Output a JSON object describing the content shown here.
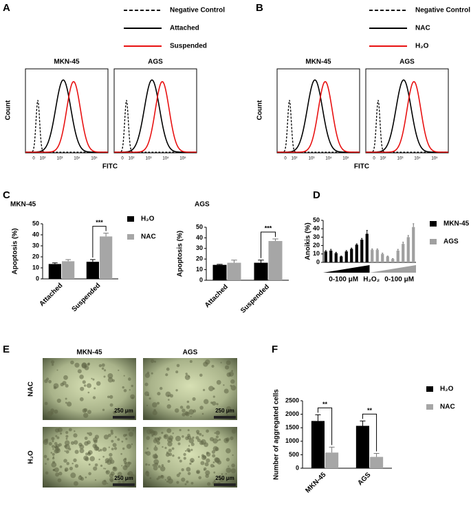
{
  "panel_labels": [
    "A",
    "B",
    "C",
    "D",
    "E",
    "F"
  ],
  "flow_panels": [
    {
      "legend": [
        {
          "label": "Negative Control",
          "color": "#000000",
          "style": "dashed"
        },
        {
          "label": "Attached",
          "color": "#000000",
          "style": "solid"
        },
        {
          "label": "Suspended",
          "color": "#e81010",
          "style": "solid"
        }
      ],
      "plots": [
        "MKN-45",
        "AGS"
      ],
      "y_label": "Count",
      "x_label": "FITC",
      "tick_labels": [
        "0",
        "10²",
        "10³",
        "10⁴",
        "10⁵"
      ]
    },
    {
      "legend": [
        {
          "label": "Negative Control",
          "color": "#000000",
          "style": "dashed"
        },
        {
          "label": "NAC",
          "color": "#000000",
          "style": "solid"
        },
        {
          "label": "H₂O",
          "color": "#e81010",
          "style": "solid"
        }
      ],
      "plots": [
        "MKN-45",
        "AGS"
      ],
      "y_label": "Count",
      "x_label": "FITC",
      "tick_labels": [
        "0",
        "10²",
        "10³",
        "10⁴",
        "10⁵"
      ]
    }
  ],
  "chart_data": [
    {
      "type": "bar",
      "title": "MKN-45",
      "y_label": "Apoptosis (%)",
      "categories": [
        "Attached",
        "Suspended"
      ],
      "series": [
        {
          "name": "H₂O",
          "color": "#000000",
          "values": [
            13.5,
            15.5
          ],
          "errors": [
            1,
            2
          ]
        },
        {
          "name": "NAC",
          "color": "#a6a6a6",
          "values": [
            16,
            38.5
          ],
          "errors": [
            1.5,
            3
          ]
        }
      ],
      "annotations": [
        null,
        "***"
      ],
      "ylim": [
        0,
        50
      ],
      "yticks": [
        0,
        10,
        20,
        30,
        40,
        50
      ],
      "legend": "right"
    },
    {
      "type": "bar",
      "title": "AGS",
      "y_label": "Apoptosis (%)",
      "categories": [
        "Attached",
        "Suspended"
      ],
      "series": [
        {
          "color": "#000000",
          "values": [
            14.5,
            16.5
          ],
          "errors": [
            0.5,
            2.5
          ]
        },
        {
          "color": "#a6a6a6",
          "values": [
            16.5,
            37
          ],
          "errors": [
            2.5,
            2
          ]
        }
      ],
      "annotations": [
        null,
        "***"
      ],
      "ylim": [
        0,
        50
      ],
      "yticks": [
        0,
        10,
        20,
        30,
        40,
        50
      ]
    },
    {
      "type": "bar",
      "y_label": "Anoikis (%)",
      "categories": [
        null,
        null,
        null,
        null,
        null,
        null,
        null,
        null,
        null,
        null,
        null,
        null,
        null,
        null,
        null,
        null,
        null,
        null
      ],
      "series": [
        {
          "name": "MKN-45",
          "color": "#000000",
          "values": [
            13,
            14,
            11,
            7,
            13,
            16,
            21,
            27,
            34,
            null,
            null,
            null,
            null,
            null,
            null,
            null,
            null,
            null
          ],
          "errors": [
            1,
            1.5,
            1,
            0.5,
            1,
            1,
            1,
            1.5,
            4,
            null,
            null,
            null,
            null,
            null,
            null,
            null,
            null,
            null
          ]
        },
        {
          "name": "AGS",
          "color": "#a0a0a0",
          "values": [
            null,
            null,
            null,
            null,
            null,
            null,
            null,
            null,
            null,
            15,
            15,
            10,
            7,
            4,
            14,
            22,
            30,
            42
          ],
          "errors": [
            null,
            null,
            null,
            null,
            null,
            null,
            null,
            null,
            null,
            1,
            1,
            1,
            0.5,
            0.5,
            1.5,
            2,
            2,
            4
          ]
        }
      ],
      "x_labels": [
        "0-100 μM",
        "H₂O₂",
        "0-100 μM"
      ],
      "ylim": [
        0,
        50
      ],
      "yticks": [
        0,
        10,
        20,
        30,
        40,
        50
      ],
      "legend": "right"
    },
    {
      "type": "bar",
      "y_label": "Number of aggregated cells",
      "categories": [
        "MKN-45",
        "AGS"
      ],
      "series": [
        {
          "name": "H₂O",
          "color": "#000000",
          "values": [
            1750,
            1570
          ],
          "errors": [
            230,
            180
          ]
        },
        {
          "name": "NAC",
          "color": "#a6a6a6",
          "values": [
            580,
            420
          ],
          "errors": [
            200,
            130
          ]
        }
      ],
      "annotations": [
        "**",
        "**"
      ],
      "ylim": [
        0,
        2500
      ],
      "yticks": [
        0,
        500,
        1000,
        1500,
        2000,
        2500
      ],
      "legend": "right"
    }
  ],
  "micrographs": {
    "columns": [
      "MKN-45",
      "AGS"
    ],
    "rows": [
      "NAC",
      "H₂O"
    ],
    "scale_bar": "250 μm"
  }
}
